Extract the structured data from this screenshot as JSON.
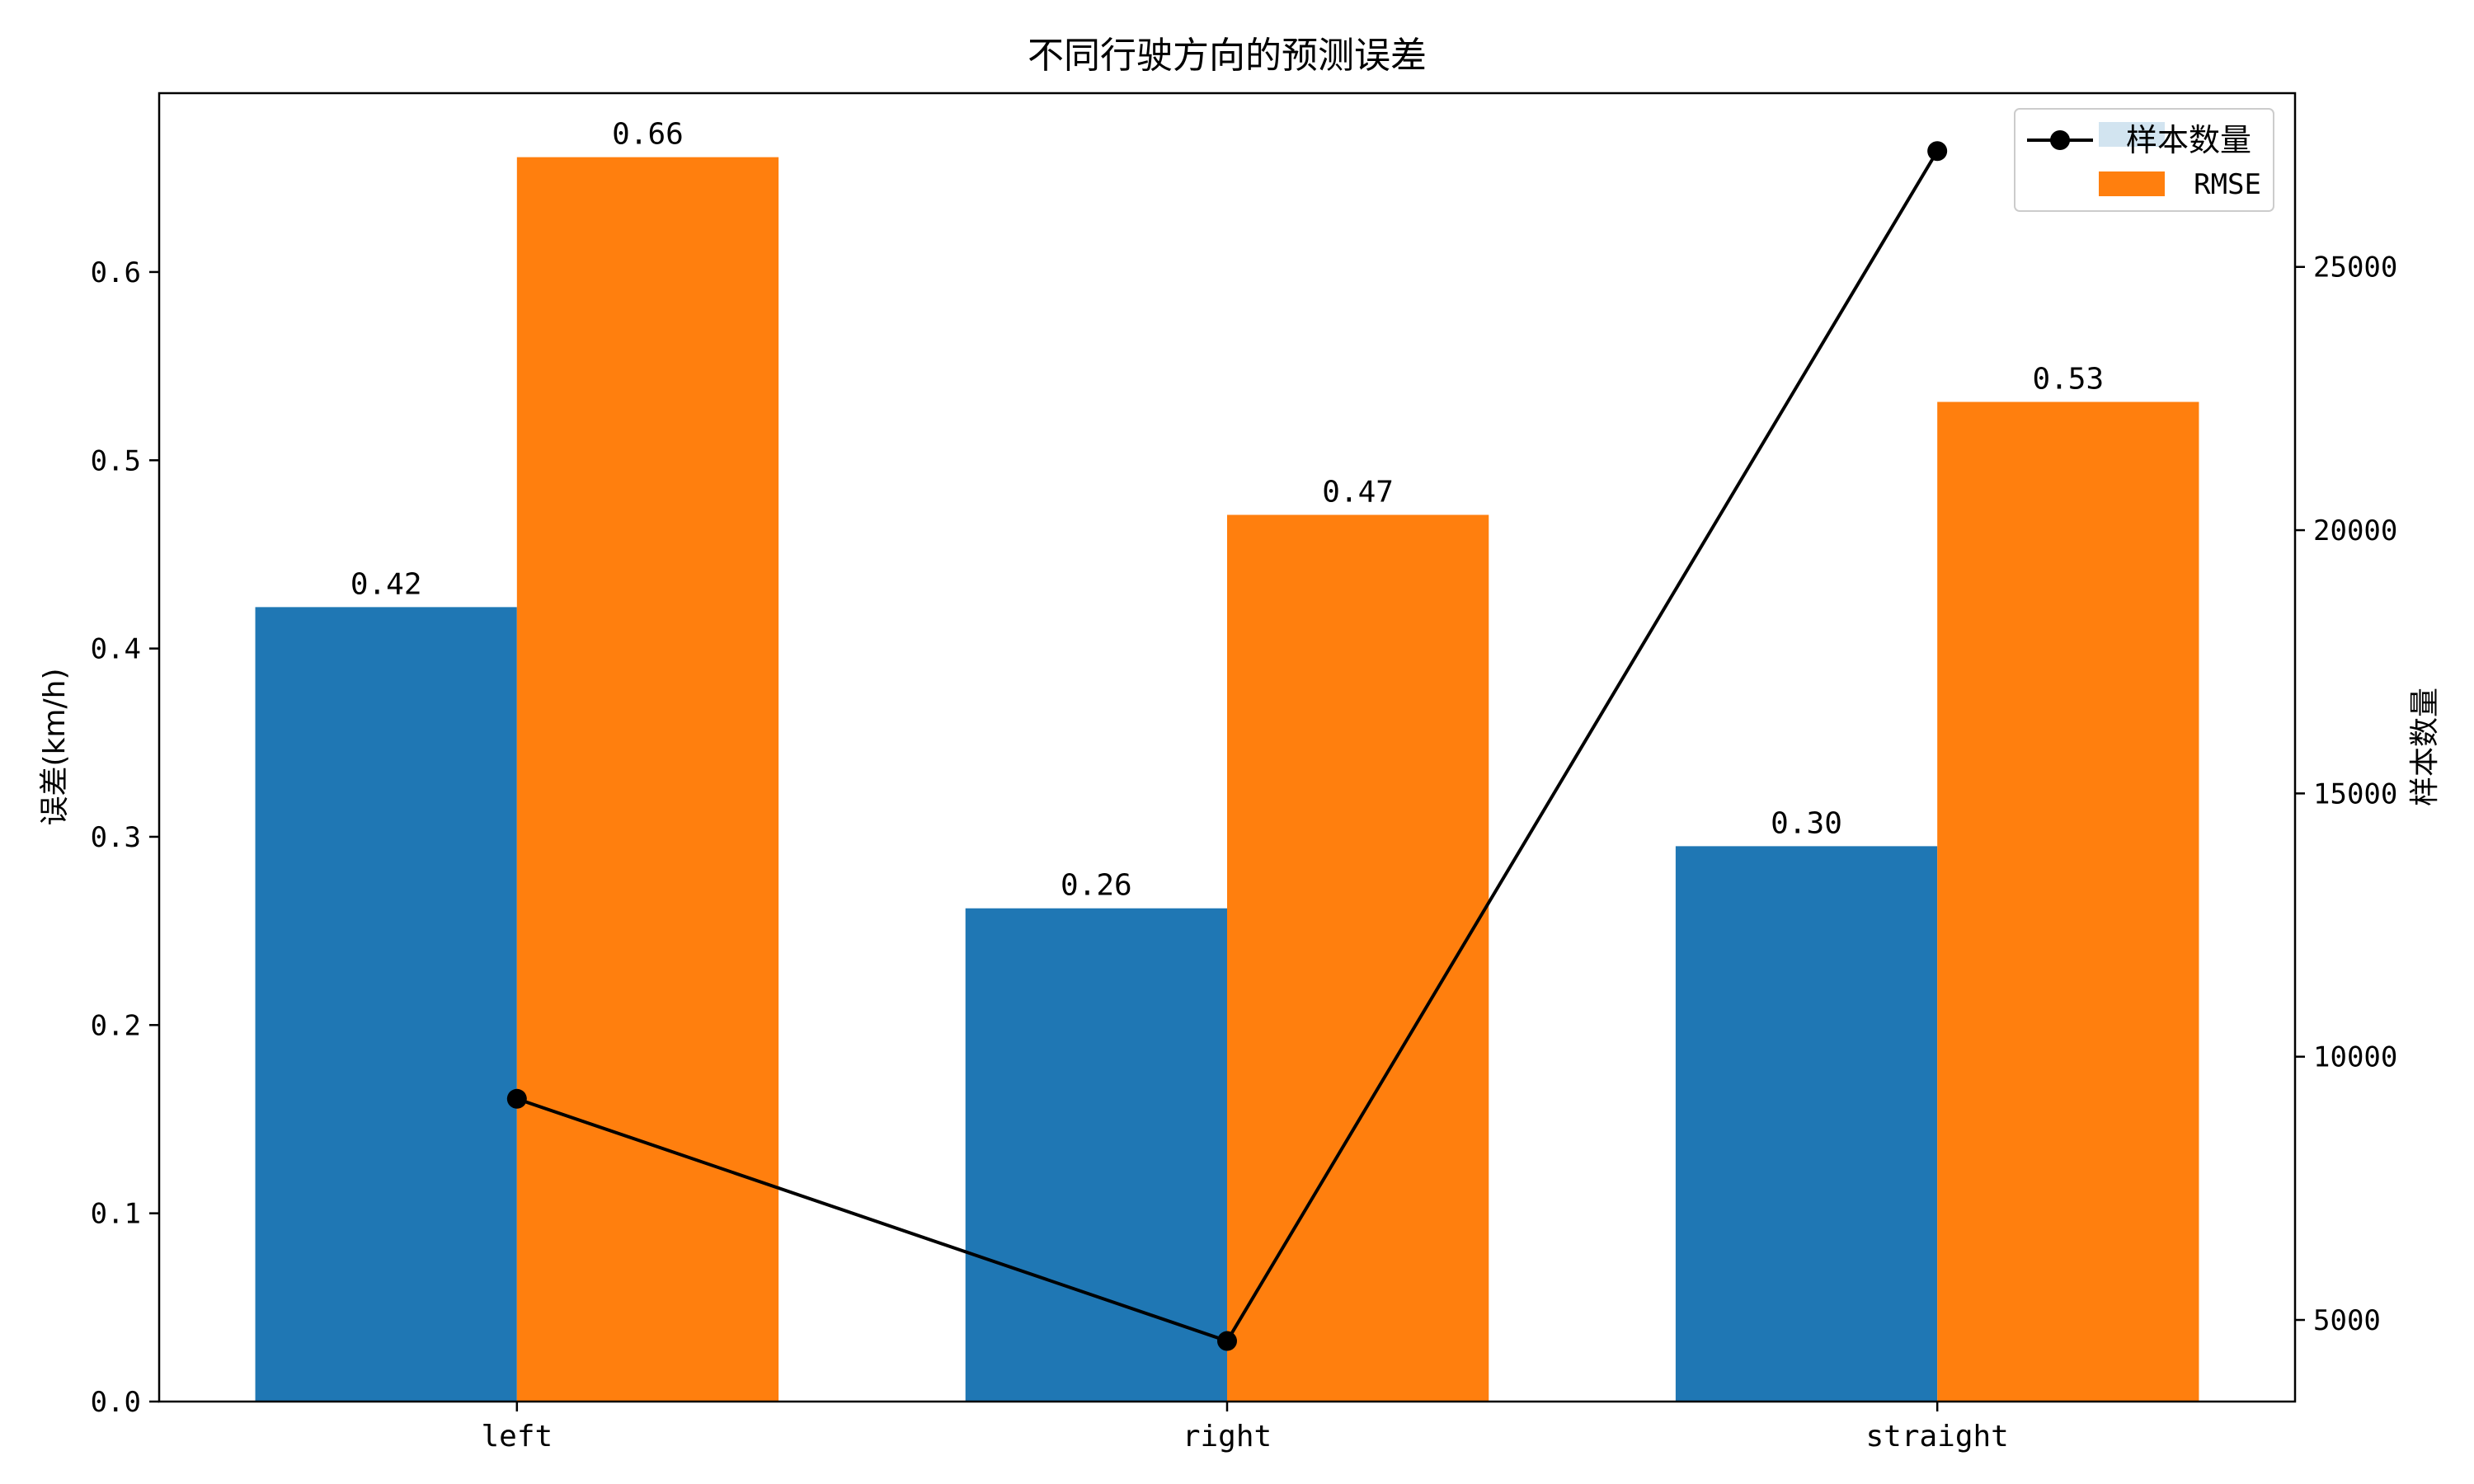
{
  "chart_data": {
    "type": "bar",
    "title": "不同行驶方向的预测误差",
    "categories": [
      "left",
      "right",
      "straight"
    ],
    "ylabel": "误差(km/h)",
    "ylim": [
      0,
      0.695
    ],
    "yticks": [
      "0.0",
      "0.1",
      "0.2",
      "0.3",
      "0.4",
      "0.5",
      "0.6"
    ],
    "series": [
      {
        "name": "",
        "values": [
          0.422,
          0.262,
          0.295
        ],
        "labels": [
          "0.42",
          "0.26",
          "0.30"
        ],
        "color": "#1f77b4"
      },
      {
        "name": "RMSE",
        "values": [
          0.661,
          0.471,
          0.531
        ],
        "labels": [
          "0.66",
          "0.47",
          "0.53"
        ],
        "color": "#ff7f0e"
      }
    ],
    "secondary_axis": {
      "label": "样本数量",
      "type": "line",
      "series_name": "样本数量",
      "values": [
        9200,
        4600,
        27200
      ],
      "ylim": [
        3450,
        28300
      ],
      "yticks": [
        "5000",
        "10000",
        "15000",
        "20000",
        "25000"
      ],
      "color": "#000000"
    },
    "legend": {
      "placement": "top-right",
      "entries": [
        "样本数量",
        "RMSE"
      ]
    },
    "grid": false
  }
}
